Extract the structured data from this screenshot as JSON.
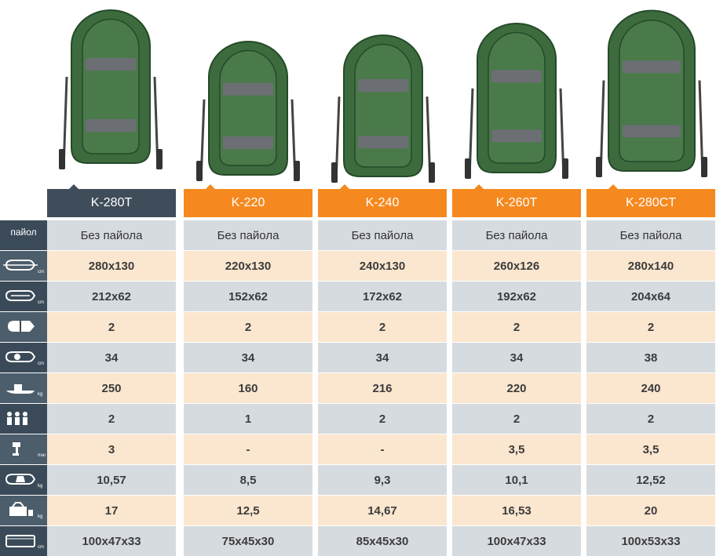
{
  "models": [
    {
      "name": "K-280T",
      "active": true
    },
    {
      "name": "K-220",
      "active": false
    },
    {
      "name": "K-240",
      "active": false
    },
    {
      "name": "K-260T",
      "active": false
    },
    {
      "name": "K-280CT",
      "active": false
    }
  ],
  "colors": {
    "active": "#3f4d5a",
    "inactive": "#f5891f",
    "boat": "#3d6b3e",
    "boat_dark": "#244a28",
    "seat": "#6b6f73"
  },
  "rows": [
    {
      "icon": "floor-icon",
      "label": "пайол",
      "values": [
        "Без пайола",
        "Без пайола",
        "Без пайола",
        "Без пайола",
        "Без пайола"
      ]
    },
    {
      "icon": "boat-outer-size-icon",
      "label": "",
      "values": [
        "280x130",
        "220x130",
        "240x130",
        "260x126",
        "280x140"
      ]
    },
    {
      "icon": "boat-inner-size-icon",
      "label": "",
      "values": [
        "212x62",
        "152x62",
        "172x62",
        "192x62",
        "204x64"
      ]
    },
    {
      "icon": "chambers-icon",
      "label": "",
      "values": [
        "2",
        "2",
        "2",
        "2",
        "2"
      ]
    },
    {
      "icon": "tube-diameter-icon",
      "label": "",
      "values": [
        "34",
        "34",
        "34",
        "34",
        "38"
      ]
    },
    {
      "icon": "load-capacity-icon",
      "label": "",
      "values": [
        "250",
        "160",
        "216",
        "220",
        "240"
      ]
    },
    {
      "icon": "persons-icon",
      "label": "",
      "values": [
        "2",
        "1",
        "2",
        "2",
        "2"
      ]
    },
    {
      "icon": "max-motor-icon",
      "label": "",
      "values": [
        "3",
        "-",
        "-",
        "3,5",
        "3,5"
      ]
    },
    {
      "icon": "boat-weight-icon",
      "label": "",
      "values": [
        "10,57",
        "8,5",
        "9,3",
        "10,1",
        "12,52"
      ]
    },
    {
      "icon": "kit-weight-icon",
      "label": "",
      "values": [
        "17",
        "12,5",
        "14,67",
        "16,53",
        "20"
      ]
    },
    {
      "icon": "package-size-icon",
      "label": "",
      "values": [
        "100x47x33",
        "75x45x30",
        "85x45x30",
        "100x47x33",
        "100x53x33"
      ]
    }
  ],
  "unit_labels": {
    "cm": "cm",
    "kg": "kg",
    "max": "max"
  }
}
